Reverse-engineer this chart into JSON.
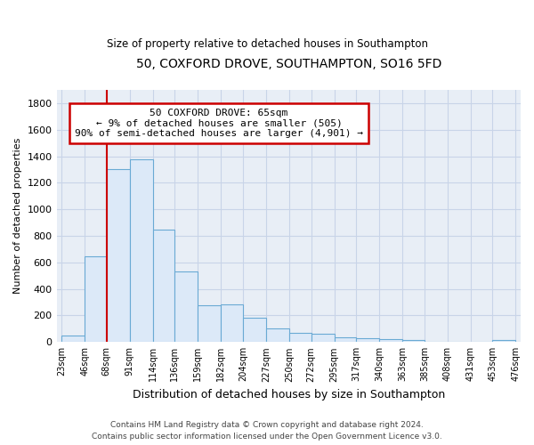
{
  "title": "50, COXFORD DROVE, SOUTHAMPTON, SO16 5FD",
  "subtitle": "Size of property relative to detached houses in Southampton",
  "xlabel": "Distribution of detached houses by size in Southampton",
  "ylabel": "Number of detached properties",
  "bar_color": "#dce9f8",
  "bar_edge_color": "#6aaad4",
  "background_color": "#e8eef6",
  "fig_background": "#ffffff",
  "grid_color": "#c8d4e8",
  "bins": [
    "23sqm",
    "46sqm",
    "68sqm",
    "91sqm",
    "114sqm",
    "136sqm",
    "159sqm",
    "182sqm",
    "204sqm",
    "227sqm",
    "250sqm",
    "272sqm",
    "295sqm",
    "317sqm",
    "340sqm",
    "363sqm",
    "385sqm",
    "408sqm",
    "431sqm",
    "453sqm",
    "476sqm"
  ],
  "bin_edges": [
    23,
    46,
    68,
    91,
    114,
    136,
    159,
    182,
    204,
    227,
    250,
    272,
    295,
    317,
    340,
    363,
    385,
    408,
    431,
    453,
    476
  ],
  "values": [
    50,
    645,
    1305,
    1375,
    845,
    530,
    280,
    285,
    185,
    105,
    70,
    65,
    35,
    30,
    20,
    15,
    5,
    5,
    0,
    15
  ],
  "ylim": [
    0,
    1900
  ],
  "yticks": [
    0,
    200,
    400,
    600,
    800,
    1000,
    1200,
    1400,
    1600,
    1800
  ],
  "red_line_x": 68,
  "annotation_line1": "50 COXFORD DROVE: 65sqm",
  "annotation_line2": "← 9% of detached houses are smaller (505)",
  "annotation_line3": "90% of semi-detached houses are larger (4,901) →",
  "annotation_box_color": "#cc0000",
  "footer_line1": "Contains HM Land Registry data © Crown copyright and database right 2024.",
  "footer_line2": "Contains public sector information licensed under the Open Government Licence v3.0."
}
